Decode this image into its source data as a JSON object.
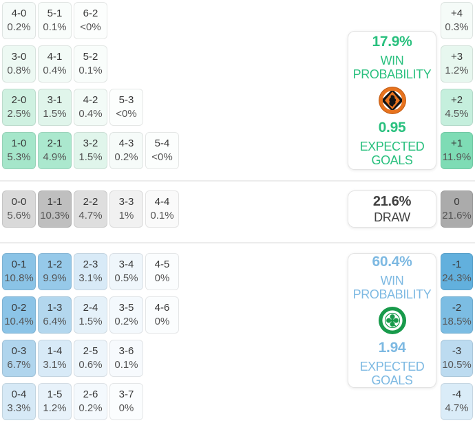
{
  "theme": {
    "home_accent": "#29c07e",
    "away_accent": "#7db9e2",
    "draw_text": "#414141",
    "home_strong_cell": "#7edcb5",
    "away_strong_cell": "#62b0dd",
    "draw_strong_cell": "#ababab"
  },
  "grids": {
    "home": {
      "rows": [
        [
          {
            "score": "4-0",
            "pct": "0.2%",
            "bg": "#f6fbf9"
          },
          {
            "score": "5-1",
            "pct": "0.1%",
            "bg": "#f9fdfb"
          },
          {
            "score": "6-2",
            "pct": "<0%",
            "bg": "#fcfefd"
          }
        ],
        [
          {
            "score": "3-0",
            "pct": "0.8%",
            "bg": "#edf9f3"
          },
          {
            "score": "4-1",
            "pct": "0.4%",
            "bg": "#f3fbf7"
          },
          {
            "score": "5-2",
            "pct": "0.1%",
            "bg": "#f9fdfb"
          }
        ],
        [
          {
            "score": "2-0",
            "pct": "2.5%",
            "bg": "#cff1e1"
          },
          {
            "score": "3-1",
            "pct": "1.5%",
            "bg": "#e0f5eb"
          },
          {
            "score": "4-2",
            "pct": "0.4%",
            "bg": "#f3fbf7"
          },
          {
            "score": "5-3",
            "pct": "<0%",
            "bg": "#fcfefd"
          }
        ],
        [
          {
            "score": "1-0",
            "pct": "5.3%",
            "bg": "#a5e6ca"
          },
          {
            "score": "2-1",
            "pct": "4.9%",
            "bg": "#abe8ce"
          },
          {
            "score": "3-2",
            "pct": "1.5%",
            "bg": "#e0f5eb"
          },
          {
            "score": "4-3",
            "pct": "0.2%",
            "bg": "#f6fbf9"
          },
          {
            "score": "5-4",
            "pct": "<0%",
            "bg": "#fcfefd"
          }
        ]
      ]
    },
    "draw": {
      "rows": [
        [
          {
            "score": "0-0",
            "pct": "5.6%",
            "bg": "#d9d9d9"
          },
          {
            "score": "1-1",
            "pct": "10.3%",
            "bg": "#bfbfbf"
          },
          {
            "score": "2-2",
            "pct": "4.7%",
            "bg": "#dedede"
          },
          {
            "score": "3-3",
            "pct": "1%",
            "bg": "#f1f1f1"
          },
          {
            "score": "4-4",
            "pct": "0.1%",
            "bg": "#fafafa"
          }
        ]
      ]
    },
    "away": {
      "rows": [
        [
          {
            "score": "0-1",
            "pct": "10.8%",
            "bg": "#8ac3e6"
          },
          {
            "score": "1-2",
            "pct": "9.9%",
            "bg": "#96c9e9"
          },
          {
            "score": "2-3",
            "pct": "3.1%",
            "bg": "#d8eaf7"
          },
          {
            "score": "3-4",
            "pct": "0.5%",
            "bg": "#eff6fb"
          },
          {
            "score": "4-5",
            "pct": "0%",
            "bg": "#fbfdfe"
          }
        ],
        [
          {
            "score": "0-2",
            "pct": "10.4%",
            "bg": "#8cc4e7"
          },
          {
            "score": "1-3",
            "pct": "6.4%",
            "bg": "#b3d7ee"
          },
          {
            "score": "2-4",
            "pct": "1.5%",
            "bg": "#e5f1f9"
          },
          {
            "score": "3-5",
            "pct": "0.2%",
            "bg": "#f4f9fd"
          },
          {
            "score": "4-6",
            "pct": "0%",
            "bg": "#fbfdfe"
          }
        ],
        [
          {
            "score": "0-3",
            "pct": "6.7%",
            "bg": "#b0d5ed"
          },
          {
            "score": "1-4",
            "pct": "3.1%",
            "bg": "#d8eaf7"
          },
          {
            "score": "2-5",
            "pct": "0.6%",
            "bg": "#edf5fb"
          },
          {
            "score": "3-6",
            "pct": "0.1%",
            "bg": "#f7fafd"
          }
        ],
        [
          {
            "score": "0-4",
            "pct": "3.3%",
            "bg": "#d6e9f6"
          },
          {
            "score": "1-5",
            "pct": "1.2%",
            "bg": "#e8f2fa"
          },
          {
            "score": "2-6",
            "pct": "0.2%",
            "bg": "#f4f9fd"
          },
          {
            "score": "3-7",
            "pct": "0%",
            "bg": "#fbfdfe"
          }
        ]
      ]
    }
  },
  "margins": {
    "home": [
      {
        "score": "+4",
        "pct": "0.3%",
        "bg": "#f5fbf8"
      },
      {
        "score": "+3",
        "pct": "1.2%",
        "bg": "#e7f7ef"
      },
      {
        "score": "+2",
        "pct": "4.5%",
        "bg": "#c5efdd"
      },
      {
        "score": "+1",
        "pct": "11.9%",
        "bg": "#7edcb5"
      }
    ],
    "draw": [
      {
        "score": "0",
        "pct": "21.6%",
        "bg": "#ababab"
      }
    ],
    "away": [
      {
        "score": "-1",
        "pct": "24.3%",
        "bg": "#62b0dd"
      },
      {
        "score": "-2",
        "pct": "18.5%",
        "bg": "#7cbde3"
      },
      {
        "score": "-3",
        "pct": "10.5%",
        "bg": "#bcdbf0"
      },
      {
        "score": "-4",
        "pct": "4.7%",
        "bg": "#daecf8"
      }
    ]
  },
  "cards": {
    "home": {
      "win_probability": "17.9%",
      "win_label": "WIN PROBABILITY",
      "expected_goals": "0.95",
      "goals_label": "EXPECTED GOALS",
      "crest_icon": "dundee-united-crest"
    },
    "draw": {
      "probability": "21.6%",
      "label": "DRAW"
    },
    "away": {
      "win_probability": "60.4%",
      "win_label": "WIN PROBABILITY",
      "expected_goals": "1.94",
      "goals_label": "EXPECTED GOALS",
      "crest_icon": "celtic-crest"
    }
  },
  "chart_data": {
    "type": "heatmap",
    "title": "Match scoreline probability matrix",
    "sections": [
      {
        "name": "home_win",
        "win_probability_pct": 17.9,
        "expected_goals": 0.95,
        "scorelines": {
          "4-0": "0.2%",
          "5-1": "0.1%",
          "6-2": "<0%",
          "3-0": "0.8%",
          "4-1": "0.4%",
          "5-2": "0.1%",
          "2-0": "2.5%",
          "3-1": "1.5%",
          "4-2": "0.4%",
          "5-3": "<0%",
          "1-0": "5.3%",
          "2-1": "4.9%",
          "3-2": "1.5%",
          "4-3": "0.2%",
          "5-4": "<0%"
        },
        "goal_margins": {
          "+4": "0.3%",
          "+3": "1.2%",
          "+2": "4.5%",
          "+1": "11.9%"
        }
      },
      {
        "name": "draw",
        "probability_pct": 21.6,
        "scorelines": {
          "0-0": "5.6%",
          "1-1": "10.3%",
          "2-2": "4.7%",
          "3-3": "1%",
          "4-4": "0.1%"
        },
        "goal_margins": {
          "0": "21.6%"
        }
      },
      {
        "name": "away_win",
        "win_probability_pct": 60.4,
        "expected_goals": 1.94,
        "scorelines": {
          "0-1": "10.8%",
          "1-2": "9.9%",
          "2-3": "3.1%",
          "3-4": "0.5%",
          "4-5": "0%",
          "0-2": "10.4%",
          "1-3": "6.4%",
          "2-4": "1.5%",
          "3-5": "0.2%",
          "4-6": "0%",
          "0-3": "6.7%",
          "1-4": "3.1%",
          "2-5": "0.6%",
          "3-6": "0.1%",
          "0-4": "3.3%",
          "1-5": "1.2%",
          "2-6": "0.2%",
          "3-7": "0%"
        },
        "goal_margins": {
          "-1": "24.3%",
          "-2": "18.5%",
          "-3": "10.5%",
          "-4": "4.7%"
        }
      }
    ]
  }
}
